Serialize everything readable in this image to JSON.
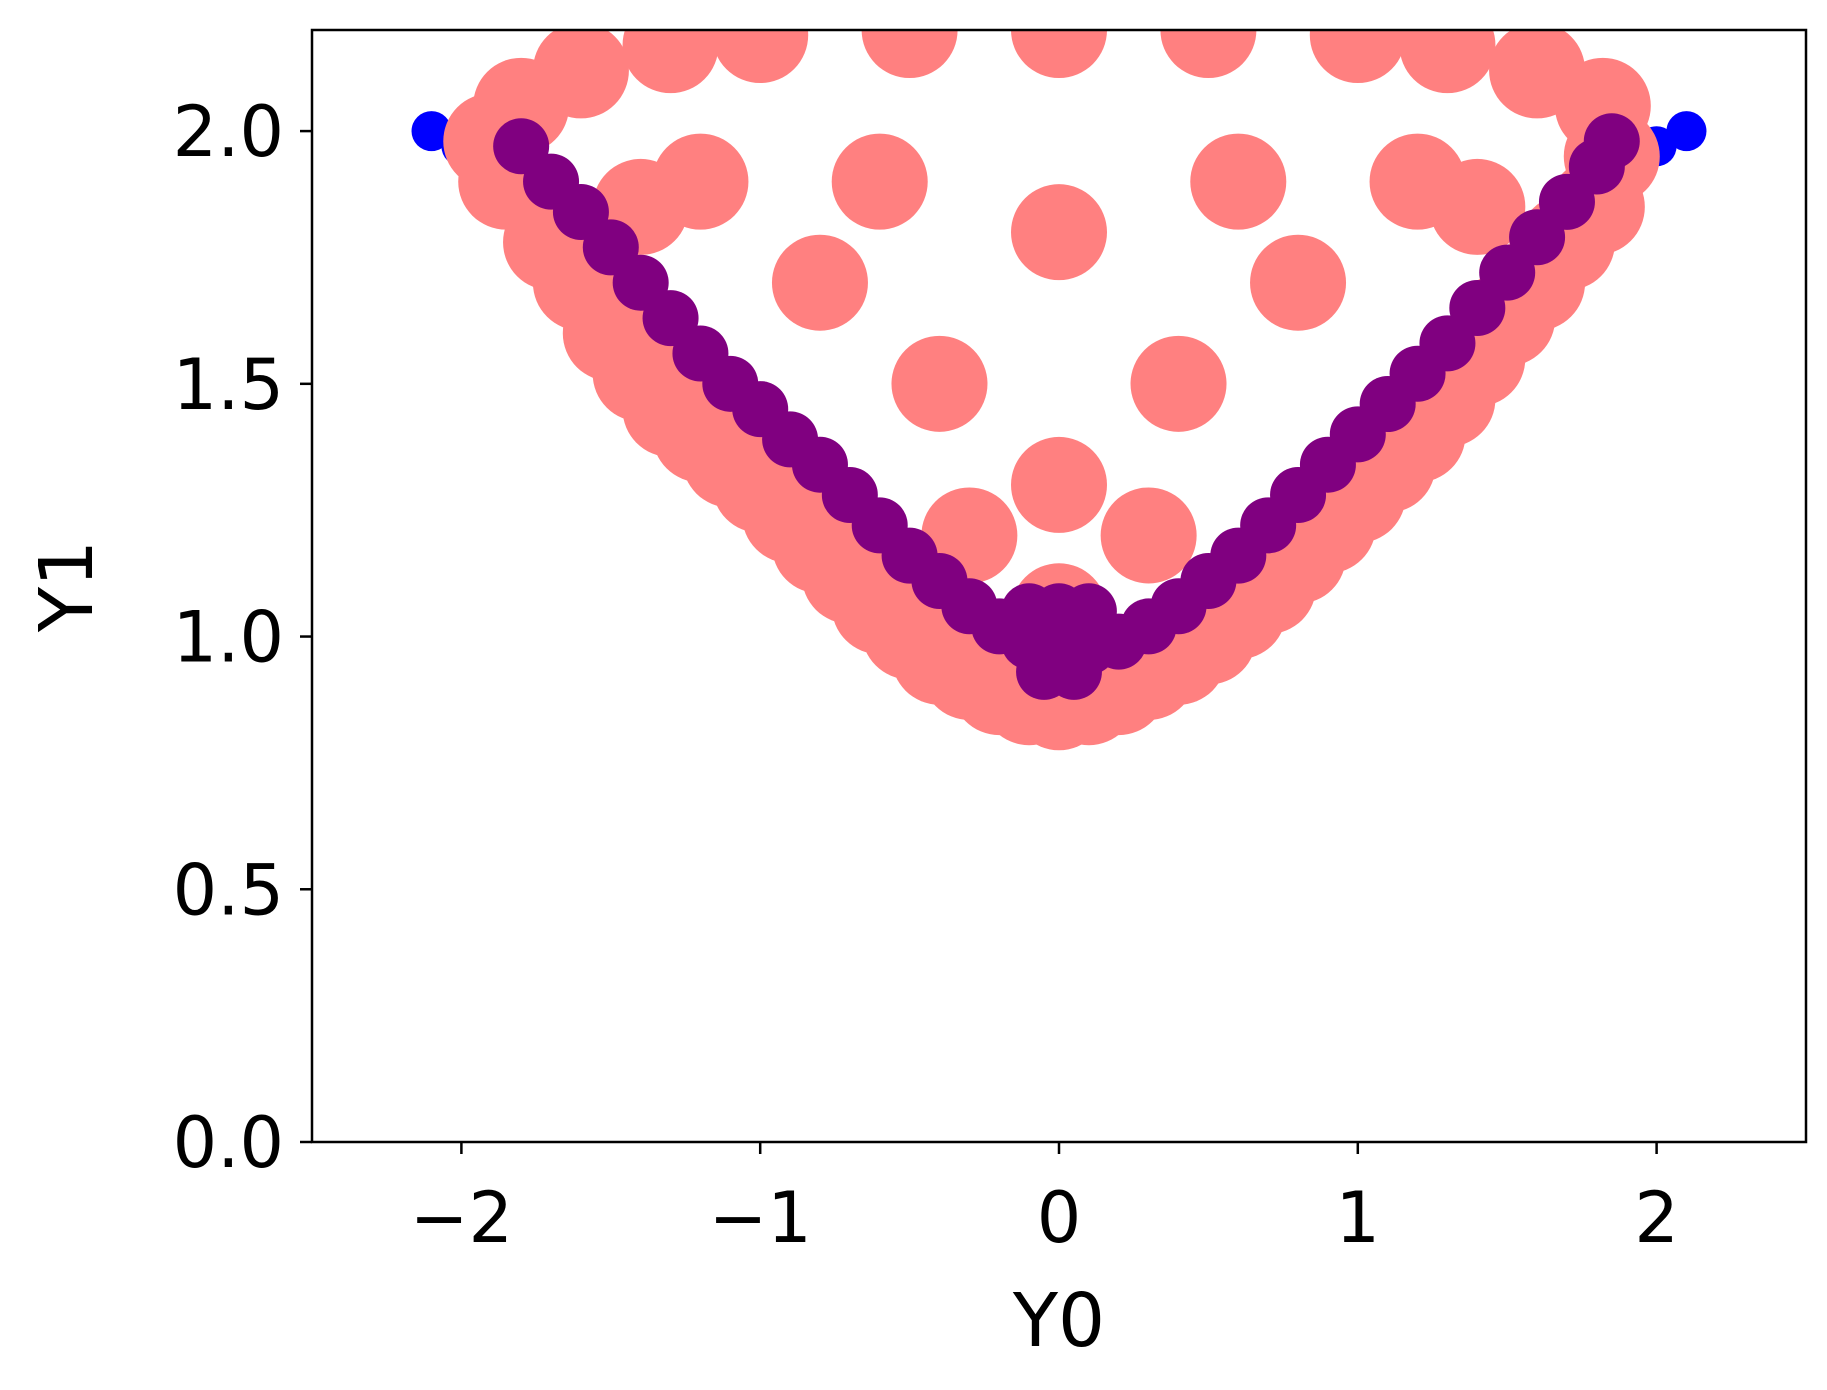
{
  "chart_data": {
    "type": "scatter",
    "title": "",
    "xlabel": "Y0",
    "ylabel": "Y1",
    "xlim": [
      -2.5,
      2.5
    ],
    "ylim": [
      0.0,
      2.2
    ],
    "x_ticks": [
      -2,
      -1,
      0,
      1,
      2
    ],
    "x_tick_labels": [
      "−2",
      "−1",
      "0",
      "1",
      "2"
    ],
    "y_ticks": [
      0.0,
      0.5,
      1.0,
      1.5,
      2.0
    ],
    "y_tick_labels": [
      "0.0",
      "0.5",
      "1.0",
      "1.5",
      "2.0"
    ],
    "grid": false,
    "legend": "none",
    "series": [
      {
        "color": "#0000ff",
        "opacity": 1,
        "marker": "circle",
        "points": [
          [
            -2.1,
            2.0
          ],
          [
            -2.0,
            1.97
          ],
          [
            -1.9,
            1.92
          ],
          [
            -1.8,
            1.85
          ],
          [
            -1.7,
            1.78
          ],
          [
            -1.6,
            1.72
          ],
          [
            -1.5,
            1.65
          ],
          [
            -1.4,
            1.58
          ],
          [
            -1.3,
            1.52
          ],
          [
            -1.2,
            1.46
          ],
          [
            -1.1,
            1.41
          ],
          [
            -1.0,
            1.36
          ],
          [
            -0.9,
            1.31
          ],
          [
            -0.8,
            1.25
          ],
          [
            -0.7,
            1.2
          ],
          [
            -0.6,
            1.14
          ],
          [
            -0.5,
            1.08
          ],
          [
            -0.4,
            1.02
          ],
          [
            -0.3,
            0.97
          ],
          [
            -0.2,
            0.96
          ],
          [
            1.9,
            1.92
          ],
          [
            2.0,
            1.97
          ],
          [
            2.1,
            2.0
          ]
        ]
      },
      {
        "color": "#ff8080",
        "opacity": 1,
        "marker": "circle",
        "points": [
          [
            -1.8,
            2.05
          ],
          [
            -1.9,
            1.98
          ],
          [
            -1.85,
            1.9
          ],
          [
            -1.7,
            1.78
          ],
          [
            -1.6,
            1.7
          ],
          [
            -1.5,
            1.6
          ],
          [
            -1.4,
            1.52
          ],
          [
            -1.3,
            1.45
          ],
          [
            -1.2,
            1.4
          ],
          [
            -1.1,
            1.35
          ],
          [
            -1.0,
            1.3
          ],
          [
            -0.9,
            1.24
          ],
          [
            -0.8,
            1.18
          ],
          [
            -0.7,
            1.12
          ],
          [
            -0.6,
            1.06
          ],
          [
            -0.5,
            1.01
          ],
          [
            -0.4,
            0.96
          ],
          [
            -0.3,
            0.93
          ],
          [
            -0.2,
            0.9
          ],
          [
            -0.1,
            0.88
          ],
          [
            0.0,
            0.87
          ],
          [
            0.1,
            0.88
          ],
          [
            0.2,
            0.9
          ],
          [
            0.3,
            0.93
          ],
          [
            0.4,
            0.96
          ],
          [
            0.5,
            1.0
          ],
          [
            0.6,
            1.05
          ],
          [
            0.7,
            1.1
          ],
          [
            0.8,
            1.16
          ],
          [
            0.9,
            1.22
          ],
          [
            1.0,
            1.28
          ],
          [
            1.1,
            1.34
          ],
          [
            1.2,
            1.4
          ],
          [
            1.3,
            1.47
          ],
          [
            1.4,
            1.55
          ],
          [
            1.5,
            1.63
          ],
          [
            1.6,
            1.7
          ],
          [
            1.7,
            1.78
          ],
          [
            1.8,
            1.85
          ],
          [
            1.85,
            1.95
          ],
          [
            1.82,
            2.05
          ],
          [
            -1.6,
            2.12
          ],
          [
            -1.3,
            2.17
          ],
          [
            -1.0,
            2.19
          ],
          [
            -0.5,
            2.2
          ],
          [
            0.0,
            2.2
          ],
          [
            0.5,
            2.2
          ],
          [
            1.0,
            2.19
          ],
          [
            1.3,
            2.17
          ],
          [
            1.6,
            2.12
          ],
          [
            -1.2,
            1.9
          ],
          [
            -0.8,
            1.7
          ],
          [
            -0.4,
            1.5
          ],
          [
            0.0,
            1.3
          ],
          [
            0.4,
            1.5
          ],
          [
            0.8,
            1.7
          ],
          [
            1.2,
            1.9
          ],
          [
            -0.6,
            1.9
          ],
          [
            0.0,
            1.8
          ],
          [
            0.6,
            1.9
          ],
          [
            -0.3,
            1.2
          ],
          [
            0.3,
            1.2
          ],
          [
            0.0,
            1.05
          ],
          [
            -1.4,
            1.85
          ],
          [
            1.4,
            1.85
          ]
        ]
      },
      {
        "color": "#800080",
        "opacity": 1,
        "marker": "circle",
        "points": [
          [
            -1.8,
            1.97
          ],
          [
            -1.7,
            1.9
          ],
          [
            -1.6,
            1.84
          ],
          [
            -1.5,
            1.77
          ],
          [
            -1.4,
            1.7
          ],
          [
            -1.3,
            1.63
          ],
          [
            -1.2,
            1.56
          ],
          [
            -1.1,
            1.5
          ],
          [
            -1.0,
            1.45
          ],
          [
            -0.9,
            1.39
          ],
          [
            -0.8,
            1.34
          ],
          [
            -0.7,
            1.28
          ],
          [
            -0.6,
            1.22
          ],
          [
            -0.5,
            1.16
          ],
          [
            -0.4,
            1.11
          ],
          [
            -0.3,
            1.06
          ],
          [
            -0.2,
            1.02
          ],
          [
            -0.1,
            0.99
          ],
          [
            0.0,
            0.98
          ],
          [
            0.1,
            0.98
          ],
          [
            0.2,
            0.99
          ],
          [
            0.3,
            1.02
          ],
          [
            0.4,
            1.06
          ],
          [
            0.5,
            1.11
          ],
          [
            0.6,
            1.16
          ],
          [
            0.7,
            1.22
          ],
          [
            0.8,
            1.28
          ],
          [
            0.9,
            1.34
          ],
          [
            1.0,
            1.4
          ],
          [
            1.1,
            1.46
          ],
          [
            1.2,
            1.52
          ],
          [
            1.3,
            1.58
          ],
          [
            1.4,
            1.65
          ],
          [
            1.5,
            1.72
          ],
          [
            1.6,
            1.79
          ],
          [
            1.7,
            1.86
          ],
          [
            1.8,
            1.93
          ],
          [
            1.85,
            1.98
          ],
          [
            -0.05,
            0.93
          ],
          [
            0.05,
            0.93
          ],
          [
            0.0,
            1.05
          ],
          [
            -0.1,
            1.05
          ],
          [
            0.1,
            1.05
          ]
        ]
      }
    ]
  }
}
